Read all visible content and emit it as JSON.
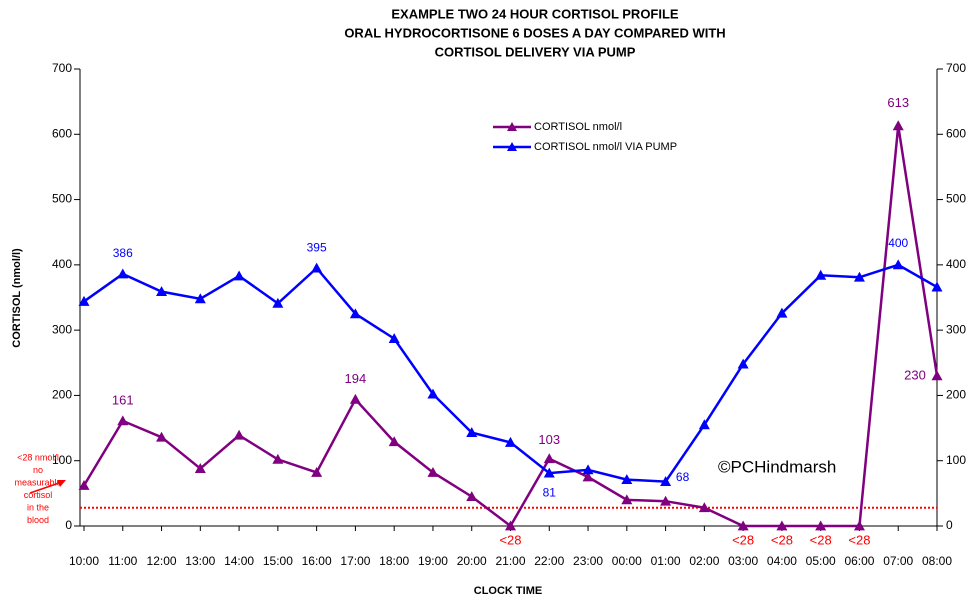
{
  "chart_data": {
    "type": "line",
    "title": [
      "EXAMPLE TWO 24 HOUR CORTISOL PROFILE",
      "ORAL HYDROCORTISONE 6 DOSES A DAY COMPARED WITH",
      "CORTISOL DELIVERY VIA PUMP"
    ],
    "x_label": "CLOCK TIME",
    "y_label": "CORTISOL (nmol/l)",
    "categories": [
      "10:00",
      "11:00",
      "12:00",
      "13:00",
      "14:00",
      "15:00",
      "16:00",
      "17:00",
      "18:00",
      "19:00",
      "20:00",
      "21:00",
      "22:00",
      "23:00",
      "00:00",
      "01:00",
      "02:00",
      "03:00",
      "04:00",
      "05:00",
      "06:00",
      "07:00",
      "08:00"
    ],
    "series": [
      {
        "name": "CORTISOL nmol/l",
        "color": "#800080",
        "values": [
          62,
          161,
          136,
          88,
          139,
          102,
          82,
          194,
          129,
          82,
          45,
          0,
          103,
          75,
          40,
          38,
          28,
          0,
          0,
          0,
          0,
          613,
          230
        ],
        "value_labels": [
          null,
          "161",
          null,
          null,
          null,
          null,
          null,
          "194",
          null,
          null,
          null,
          "<28",
          "103",
          null,
          null,
          null,
          null,
          "<28",
          "<28",
          "<28",
          "<28",
          "613",
          "230"
        ],
        "value_label_colors": [
          null,
          "#800080",
          null,
          null,
          null,
          null,
          null,
          "#800080",
          null,
          null,
          null,
          "#ff0000",
          "#800080",
          null,
          null,
          null,
          null,
          "#ff0000",
          "#ff0000",
          "#ff0000",
          "#ff0000",
          "#800080",
          "#800080"
        ]
      },
      {
        "name": "CORTISOL nmol/l VIA PUMP",
        "color": "#0000ff",
        "values": [
          344,
          386,
          359,
          348,
          383,
          341,
          395,
          325,
          287,
          202,
          143,
          128,
          81,
          86,
          71,
          68,
          155,
          248,
          326,
          384,
          381,
          400,
          366
        ],
        "value_labels": [
          null,
          "386",
          null,
          null,
          null,
          null,
          "395",
          null,
          null,
          null,
          null,
          null,
          "81",
          null,
          null,
          "68",
          null,
          null,
          null,
          null,
          null,
          "400",
          null
        ],
        "value_label_colors": [
          null,
          "#0000ff",
          null,
          null,
          null,
          null,
          "#0000ff",
          null,
          null,
          null,
          null,
          null,
          "#0000ff",
          null,
          null,
          "#0000ff",
          null,
          null,
          null,
          null,
          null,
          "#0000ff",
          null
        ]
      }
    ],
    "ylim": [
      0,
      700
    ],
    "yticks": [
      0,
      100,
      200,
      300,
      400,
      500,
      600,
      700
    ],
    "y2lim": [
      0,
      700
    ],
    "y2ticks": [
      0,
      100,
      200,
      300,
      400,
      500,
      600,
      700
    ],
    "reference_line": {
      "value": 28,
      "color": "#ff0000"
    },
    "annotation": [
      "<28 nmol/l",
      "no",
      "measurable",
      "cortisol",
      "in the",
      "blood"
    ],
    "annotation_color": "#ff0000",
    "watermark": "©PCHindmarsh",
    "grid": false
  }
}
